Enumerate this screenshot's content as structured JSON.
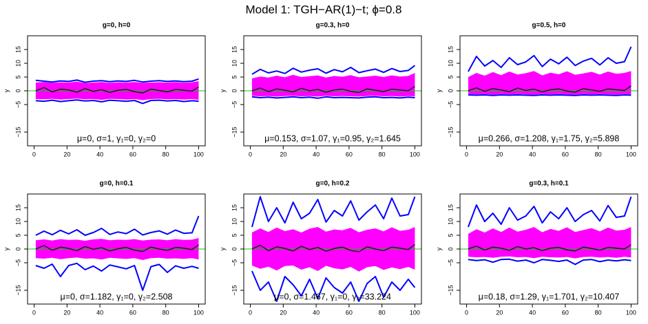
{
  "title": "Model 1: TGH−AR(1)−t; ϕ=0.8",
  "chart_data": [
    {
      "type": "line",
      "title": "g=0, h=0",
      "ylabel": "y",
      "annotation": "μ=0, σ=1, γ₁=0, γ₂=0",
      "x": [
        1,
        6,
        11,
        16,
        21,
        26,
        31,
        36,
        41,
        46,
        51,
        56,
        61,
        66,
        71,
        76,
        81,
        86,
        91,
        96,
        100
      ],
      "xlim": [
        -4,
        104
      ],
      "ylim": [
        -20,
        20
      ],
      "xticks": [
        0,
        20,
        40,
        60,
        80,
        100
      ],
      "yticks": [
        15,
        10,
        5,
        0,
        {
          "value": -5,
          "label": "−5"
        },
        {
          "value": -15,
          "label": "−15"
        }
      ],
      "hline": {
        "value": 0,
        "color": "#00cc00"
      },
      "band": {
        "color": "#ff00ff",
        "upper": [
          3,
          3.2,
          2.9,
          3.1,
          3,
          3.3,
          2.8,
          3,
          3.2,
          2.9,
          3.1,
          3,
          3.2,
          2.9,
          3,
          3.1,
          3,
          3.2,
          2.9,
          3.1,
          3.5
        ],
        "lower": [
          -3,
          -3.1,
          -2.9,
          -3.2,
          -3,
          -2.8,
          -3.1,
          -3,
          -3.3,
          -2.9,
          -3,
          -3.2,
          -3,
          -3.4,
          -3,
          -2.9,
          -3.1,
          -3,
          -3.2,
          -3,
          -3.3
        ]
      },
      "series": [
        {
          "color": "#0000ff",
          "values": [
            3.8,
            3.5,
            3.2,
            3.6,
            3.4,
            3.9,
            3.1,
            3.5,
            3.7,
            3.3,
            3.6,
            3.4,
            3.8,
            3.2,
            3.5,
            3.7,
            3.4,
            3.6,
            3.3,
            3.5,
            4.3
          ]
        },
        {
          "color": "#0000ff",
          "values": [
            -3.6,
            -3.8,
            -3.4,
            -3.9,
            -3.6,
            -3.3,
            -3.7,
            -3.5,
            -4,
            -3.4,
            -3.6,
            -3.8,
            -3.5,
            -4.6,
            -3.5,
            -3.4,
            -3.7,
            -3.5,
            -3.9,
            -3.6,
            -3.8
          ]
        },
        {
          "color": "#222222",
          "values": [
            0,
            1.2,
            -0.4,
            0.6,
            0.3,
            -0.5,
            0.8,
            -0.2,
            0.4,
            -0.6,
            0.2,
            0.5,
            -0.3,
            -0.8,
            0.6,
            0.1,
            -0.4,
            0.5,
            0.2,
            -0.1,
            1.4
          ]
        }
      ]
    },
    {
      "type": "line",
      "title": "g=0.3, h=0",
      "ylabel": "y",
      "annotation": "μ=0.153, σ=1.07, γ₁=0.95, γ₂=1.645",
      "x": [
        1,
        6,
        11,
        16,
        21,
        26,
        31,
        36,
        41,
        46,
        51,
        56,
        61,
        66,
        71,
        76,
        81,
        86,
        91,
        96,
        100
      ],
      "xlim": [
        -4,
        104
      ],
      "ylim": [
        -20,
        20
      ],
      "xticks": [
        0,
        20,
        40,
        60,
        80,
        100
      ],
      "yticks": [
        15,
        10,
        5,
        0,
        {
          "value": -5,
          "label": "−5"
        },
        {
          "value": -15,
          "label": "−15"
        }
      ],
      "hline": {
        "value": 0,
        "color": "#00cc00"
      },
      "band": {
        "color": "#ff00ff",
        "upper": [
          4.5,
          5.2,
          4.8,
          5.5,
          4.9,
          5.8,
          5,
          5.3,
          5.6,
          4.8,
          5.4,
          5.1,
          5.7,
          4.9,
          5.2,
          5.5,
          5,
          5.6,
          5.2,
          5.4,
          6.5
        ],
        "lower": [
          -1.8,
          -2,
          -1.9,
          -2.1,
          -1.9,
          -1.8,
          -2,
          -1.9,
          -2.1,
          -1.8,
          -2,
          -1.9,
          -2,
          -2.1,
          -1.9,
          -1.8,
          -2,
          -1.9,
          -2.1,
          -1.9,
          -2
        ]
      },
      "series": [
        {
          "color": "#0000ff",
          "values": [
            6,
            7.8,
            6.5,
            7.2,
            6.3,
            8.2,
            6.8,
            7.5,
            8,
            6.4,
            7.7,
            6.9,
            8.5,
            6.6,
            7.3,
            7.9,
            6.7,
            8.1,
            7,
            7.4,
            9.2
          ]
        },
        {
          "color": "#0000ff",
          "values": [
            -2.2,
            -2.5,
            -2.3,
            -2.6,
            -2.4,
            -2.2,
            -2.5,
            -2.3,
            -2.7,
            -2.2,
            -2.5,
            -2.4,
            -2.5,
            -2.6,
            -2.3,
            -2.2,
            -2.5,
            -2.4,
            -2.6,
            -2.3,
            -2.5
          ]
        },
        {
          "color": "#222222",
          "values": [
            0,
            1,
            -0.3,
            0.7,
            0.2,
            -0.4,
            0.9,
            0,
            0.5,
            -0.5,
            0.3,
            0.6,
            -0.2,
            -0.6,
            0.7,
            0.2,
            -0.3,
            0.6,
            0.3,
            0,
            1.6
          ]
        }
      ]
    },
    {
      "type": "line",
      "title": "g=0.5, h=0",
      "ylabel": "y",
      "annotation": "μ=0.266, σ=1.208, γ₁=1.75, γ₂=5.898",
      "x": [
        1,
        6,
        11,
        16,
        21,
        26,
        31,
        36,
        41,
        46,
        51,
        56,
        61,
        66,
        71,
        76,
        81,
        86,
        91,
        96,
        100
      ],
      "xlim": [
        -4,
        104
      ],
      "ylim": [
        -20,
        20
      ],
      "xticks": [
        0,
        20,
        40,
        60,
        80,
        100
      ],
      "yticks": [
        15,
        10,
        5,
        0,
        {
          "value": -5,
          "label": "−5"
        },
        {
          "value": -15,
          "label": "−15"
        }
      ],
      "hline": {
        "value": 0,
        "color": "#00cc00"
      },
      "band": {
        "color": "#ff00ff",
        "upper": [
          5,
          6.5,
          5.5,
          6.8,
          5.7,
          7,
          5.9,
          6.4,
          7.2,
          5.6,
          6.6,
          6,
          7.1,
          5.8,
          6.3,
          6.9,
          5.9,
          7,
          6.2,
          6.5,
          7.2
        ],
        "lower": [
          -1.2,
          -1.3,
          -1.2,
          -1.4,
          -1.2,
          -1.3,
          -1.2,
          -1.3,
          -1.4,
          -1.2,
          -1.3,
          -1.2,
          -1.3,
          -1.4,
          -1.2,
          -1.3,
          -1.2,
          -1.3,
          -1.4,
          -1.2,
          -1.3
        ]
      },
      "series": [
        {
          "color": "#0000ff",
          "values": [
            7,
            12.5,
            9,
            11,
            8.5,
            12,
            9.5,
            10.5,
            12.8,
            8.8,
            11.5,
            9.8,
            12.2,
            9.2,
            10.8,
            11.8,
            9.4,
            12,
            10,
            10.6,
            16
          ]
        },
        {
          "color": "#0000ff",
          "values": [
            -1.5,
            -1.6,
            -1.5,
            -1.7,
            -1.5,
            -1.6,
            -1.5,
            -1.6,
            -1.7,
            -1.5,
            -1.6,
            -1.5,
            -1.6,
            -1.7,
            -1.5,
            -1.6,
            -1.5,
            -1.6,
            -1.7,
            -1.5,
            -1.6
          ]
        },
        {
          "color": "#222222",
          "values": [
            0,
            1.1,
            -0.2,
            0.8,
            0.3,
            -0.3,
            1,
            0.1,
            0.6,
            -0.4,
            0.4,
            0.7,
            -0.1,
            -0.5,
            0.8,
            0.3,
            -0.2,
            0.7,
            0.4,
            0.1,
            1.8
          ]
        }
      ]
    },
    {
      "type": "line",
      "title": "g=0, h=0.1",
      "ylabel": "y",
      "annotation": "μ=0, σ=1.182, γ₁=0, γ₂=2.508",
      "x": [
        1,
        6,
        11,
        16,
        21,
        26,
        31,
        36,
        41,
        46,
        51,
        56,
        61,
        66,
        71,
        76,
        81,
        86,
        91,
        96,
        100
      ],
      "xlim": [
        -4,
        104
      ],
      "ylim": [
        -20,
        20
      ],
      "xticks": [
        0,
        20,
        40,
        60,
        80,
        100
      ],
      "yticks": [
        15,
        10,
        5,
        0,
        {
          "value": -5,
          "label": "−5"
        },
        {
          "value": -15,
          "label": "−15"
        }
      ],
      "hline": {
        "value": 0,
        "color": "#00cc00"
      },
      "band": {
        "color": "#ff00ff",
        "upper": [
          3.2,
          3.5,
          3.1,
          3.6,
          3.3,
          3.4,
          3,
          3.5,
          3.7,
          3.2,
          3.4,
          3.3,
          3.6,
          3.1,
          3.4,
          3.5,
          3.2,
          3.6,
          3.3,
          3.4,
          4
        ],
        "lower": [
          -3.3,
          -3.5,
          -3.2,
          -3.7,
          -3.3,
          -3.1,
          -3.5,
          -3.4,
          -3.8,
          -3.2,
          -3.4,
          -3.6,
          -3.3,
          -4,
          -3.3,
          -3.2,
          -3.5,
          -3.4,
          -3.6,
          -3.3,
          -3.8
        ]
      },
      "series": [
        {
          "color": "#0000ff",
          "values": [
            5,
            6.5,
            5.2,
            6.8,
            5.5,
            7,
            5,
            6,
            7.5,
            5.3,
            6.2,
            5.6,
            7.2,
            5.1,
            6,
            6.6,
            5.4,
            6.9,
            5.7,
            5.9,
            12
          ]
        },
        {
          "color": "#0000ff",
          "values": [
            -6,
            -7,
            -5.5,
            -10,
            -6,
            -5.2,
            -7.5,
            -6.2,
            -8,
            -5.8,
            -6.5,
            -7.2,
            -6,
            -15,
            -6.4,
            -5.6,
            -8.5,
            -6.1,
            -7,
            -6.3,
            -7
          ]
        },
        {
          "color": "#222222",
          "values": [
            0,
            1.3,
            -0.5,
            0.7,
            0.2,
            -0.6,
            0.9,
            -0.1,
            0.5,
            -0.7,
            0.1,
            0.6,
            -0.4,
            -0.9,
            0.7,
            0,
            -0.5,
            0.6,
            0.3,
            -0.2,
            1.5
          ]
        }
      ]
    },
    {
      "type": "line",
      "title": "g=0, h=0.2",
      "ylabel": "y",
      "annotation": "μ=0, σ=1.467, γ₁=0, γ₂=33.224",
      "x": [
        1,
        6,
        11,
        16,
        21,
        26,
        31,
        36,
        41,
        46,
        51,
        56,
        61,
        66,
        71,
        76,
        81,
        86,
        91,
        96,
        100
      ],
      "xlim": [
        -4,
        104
      ],
      "ylim": [
        -20,
        20
      ],
      "xticks": [
        0,
        20,
        40,
        60,
        80,
        100
      ],
      "yticks": [
        15,
        10,
        5,
        0,
        {
          "value": -5,
          "label": "−5"
        },
        {
          "value": -15,
          "label": "−15"
        }
      ],
      "hline": {
        "value": 0,
        "color": "#00cc00"
      },
      "band": {
        "color": "#ff00ff",
        "upper": [
          6,
          7.5,
          6.2,
          7.8,
          6.5,
          7.2,
          6,
          7.4,
          8,
          6.3,
          7.1,
          6.8,
          7.7,
          6.1,
          7,
          7.5,
          6.4,
          7.9,
          6.6,
          7,
          8
        ],
        "lower": [
          -6,
          -7.2,
          -6.4,
          -7.8,
          -6.2,
          -6,
          -7.5,
          -6.6,
          -8,
          -6.1,
          -7,
          -7.4,
          -6.5,
          -8.2,
          -6.6,
          -6.2,
          -7.6,
          -6.7,
          -7.3,
          -6.5,
          -7.5
        ]
      },
      "series": [
        {
          "color": "#0000ff",
          "values": [
            8,
            19,
            10,
            15,
            9.5,
            17,
            11,
            13,
            18,
            9.8,
            14,
            12,
            17.5,
            10.5,
            13.5,
            16,
            11,
            18.5,
            12,
            12.5,
            19
          ]
        },
        {
          "color": "#0000ff",
          "values": [
            -8,
            -15,
            -12,
            -19,
            -10,
            -13,
            -17,
            -11,
            -18,
            -10.5,
            -14,
            -16,
            -12,
            -19,
            -12.5,
            -10,
            -17.5,
            -12,
            -15,
            -11,
            -14
          ]
        },
        {
          "color": "#222222",
          "values": [
            0,
            1.4,
            -0.6,
            0.8,
            0.2,
            -0.7,
            1,
            -0.2,
            0.6,
            -0.8,
            0.2,
            0.7,
            -0.5,
            -1,
            0.8,
            0,
            -0.6,
            0.7,
            0.3,
            -0.2,
            1.7
          ]
        }
      ]
    },
    {
      "type": "line",
      "title": "g=0.3, h=0.1",
      "ylabel": "y",
      "annotation": "μ=0.18, σ=1.29, γ₁=1.701, γ₂=10.407",
      "x": [
        1,
        6,
        11,
        16,
        21,
        26,
        31,
        36,
        41,
        46,
        51,
        56,
        61,
        66,
        71,
        76,
        81,
        86,
        91,
        96,
        100
      ],
      "xlim": [
        -4,
        104
      ],
      "ylim": [
        -20,
        20
      ],
      "xticks": [
        0,
        20,
        40,
        60,
        80,
        100
      ],
      "yticks": [
        15,
        10,
        5,
        0,
        {
          "value": -5,
          "label": "−5"
        },
        {
          "value": -15,
          "label": "−15"
        }
      ],
      "hline": {
        "value": 0,
        "color": "#00cc00"
      },
      "band": {
        "color": "#ff00ff",
        "upper": [
          5.5,
          7.2,
          6,
          7.5,
          6.2,
          7.8,
          6.3,
          7,
          8,
          6.1,
          7.3,
          6.6,
          7.9,
          6.2,
          6.9,
          7.6,
          6.4,
          7.8,
          6.7,
          7,
          8
        ],
        "lower": [
          -2.8,
          -3,
          -2.9,
          -3.2,
          -2.8,
          -2.7,
          -3,
          -2.9,
          -3.3,
          -2.8,
          -3,
          -3.1,
          -2.9,
          -3.4,
          -2.9,
          -2.8,
          -3.1,
          -2.9,
          -3.2,
          -2.8,
          -3.1
        ]
      },
      "series": [
        {
          "color": "#0000ff",
          "values": [
            8,
            16,
            10,
            13,
            9,
            15,
            10.5,
            12,
            15.5,
            9.5,
            13.5,
            11,
            15,
            10,
            12.5,
            14,
            10.2,
            15.8,
            11.5,
            12,
            19
          ]
        },
        {
          "color": "#0000ff",
          "values": [
            -3.8,
            -4.2,
            -3.9,
            -4.8,
            -3.8,
            -3.7,
            -4.4,
            -4,
            -5,
            -3.8,
            -4.1,
            -4.5,
            -4,
            -5.6,
            -4,
            -3.8,
            -4.6,
            -4,
            -4.3,
            -3.9,
            -4.2
          ]
        },
        {
          "color": "#222222",
          "values": [
            0,
            1.1,
            -0.4,
            0.7,
            0.3,
            -0.5,
            0.9,
            0,
            0.5,
            -0.6,
            0.3,
            0.6,
            -0.3,
            -0.7,
            0.7,
            0.2,
            -0.4,
            0.6,
            0.3,
            0,
            1.6
          ]
        }
      ]
    }
  ]
}
